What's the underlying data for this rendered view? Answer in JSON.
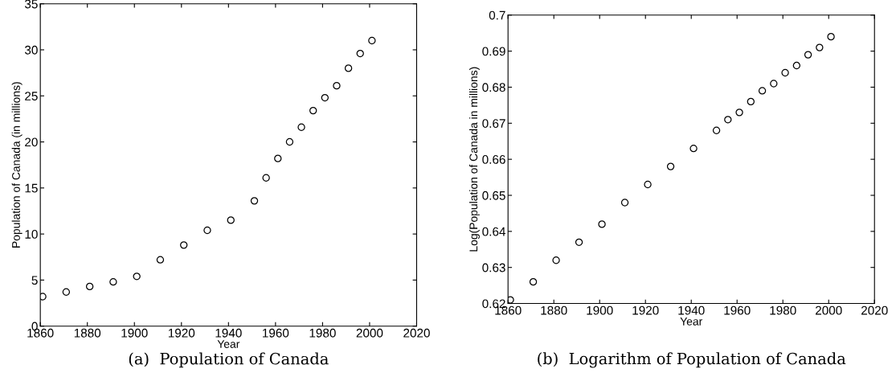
{
  "chart_data": [
    {
      "type": "scatter",
      "title": "(a)  Population of Canada",
      "xlabel": "Year",
      "ylabel": "Population of Canada (in millions)",
      "x": [
        1861,
        1871,
        1881,
        1891,
        1901,
        1911,
        1921,
        1931,
        1941,
        1951,
        1956,
        1961,
        1966,
        1971,
        1976,
        1981,
        1986,
        1991,
        1996,
        2001
      ],
      "series": [
        {
          "color": "#000000",
          "values": [
            3.2,
            3.7,
            4.3,
            4.8,
            5.4,
            7.2,
            8.8,
            10.4,
            11.5,
            13.6,
            16.1,
            18.2,
            20.0,
            21.6,
            23.4,
            24.8,
            26.1,
            28.0,
            29.6,
            31.0
          ]
        }
      ],
      "xlim": [
        1860,
        2020
      ],
      "xticks": [
        1860,
        1880,
        1900,
        1920,
        1940,
        1960,
        1980,
        2000,
        2020
      ],
      "ylim": [
        0,
        35
      ],
      "yticks": [
        0,
        5,
        10,
        15,
        20,
        25,
        30,
        35
      ],
      "marker": "circle",
      "grid": false,
      "legend": false
    },
    {
      "type": "scatter",
      "title": "(b)  Logarithm of Population of Canada",
      "xlabel": "Year",
      "ylabel": "Log(Population of Canada in millions)",
      "x": [
        1861,
        1871,
        1881,
        1891,
        1901,
        1911,
        1921,
        1931,
        1941,
        1951,
        1956,
        1961,
        1966,
        1971,
        1976,
        1981,
        1986,
        1991,
        1996,
        2001
      ],
      "series": [
        {
          "color": "#000000",
          "values": [
            0.621,
            0.626,
            0.632,
            0.637,
            0.642,
            0.648,
            0.653,
            0.658,
            0.663,
            0.668,
            0.671,
            0.673,
            0.676,
            0.679,
            0.681,
            0.684,
            0.686,
            0.689,
            0.691,
            0.694
          ]
        }
      ],
      "xlim": [
        1860,
        2020
      ],
      "xticks": [
        1860,
        1880,
        1900,
        1920,
        1940,
        1960,
        1980,
        2000,
        2020
      ],
      "ylim": [
        0.62,
        0.7
      ],
      "yticks": [
        0.62,
        0.63,
        0.64,
        0.65,
        0.66,
        0.67,
        0.68,
        0.69,
        0.7
      ],
      "marker": "circle",
      "grid": false,
      "legend": false
    }
  ]
}
